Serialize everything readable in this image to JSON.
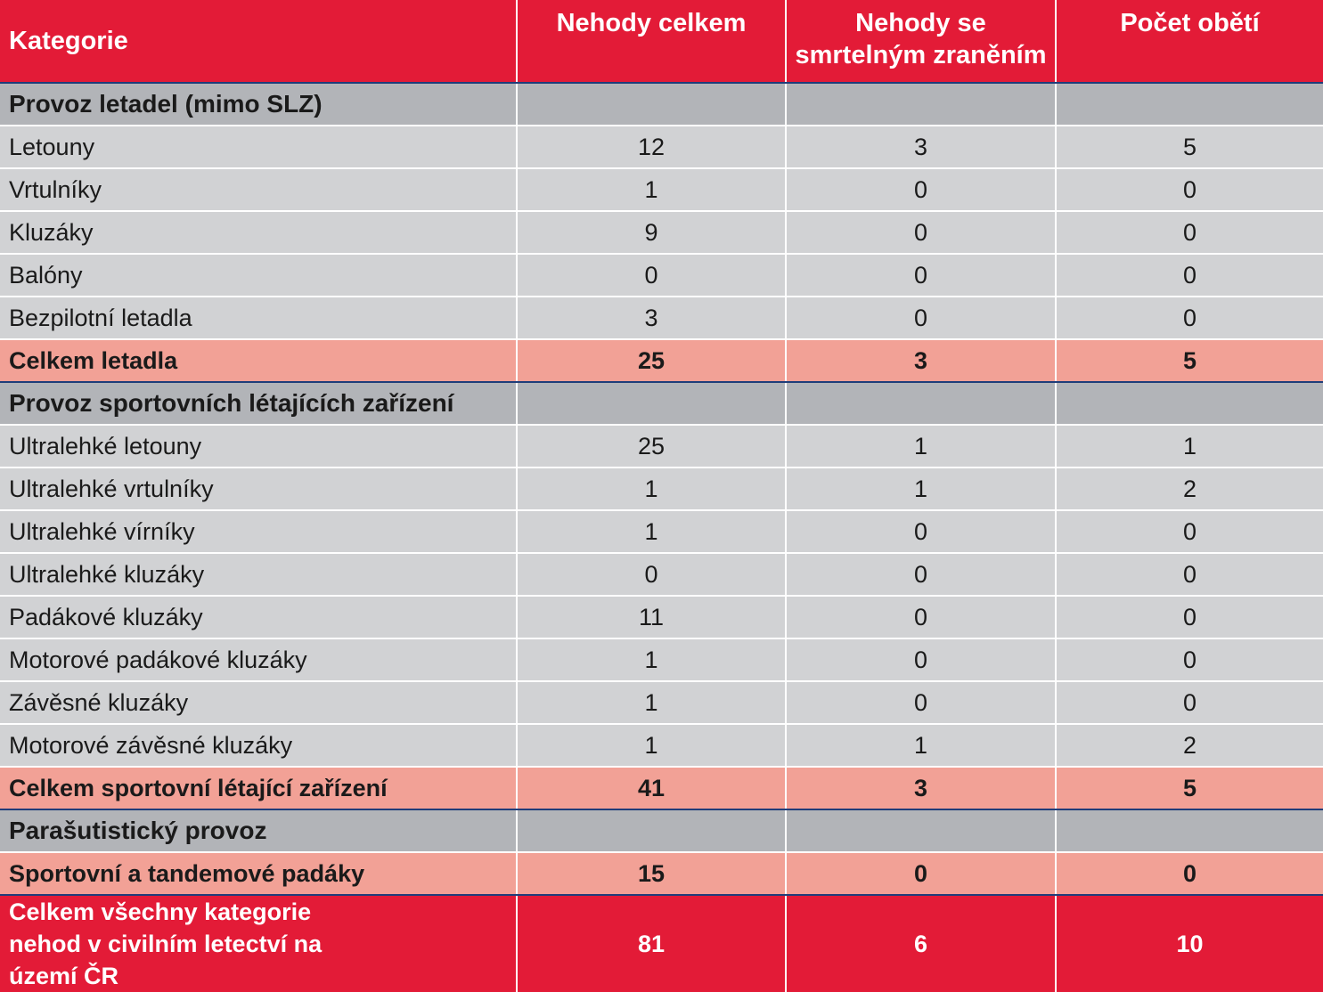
{
  "header": {
    "category": "Kategorie",
    "col_total": "Nehody celkem",
    "col_fatal": "Nehody se smrtelným zraněním",
    "col_victims": "Počet obětí"
  },
  "sections": [
    {
      "title": "Provoz letadel (mimo SLZ)",
      "rows": [
        {
          "label": "Letouny",
          "total": "12",
          "fatal": "3",
          "victims": "5"
        },
        {
          "label": "Vrtulníky",
          "total": "1",
          "fatal": "0",
          "victims": "0"
        },
        {
          "label": "Kluzáky",
          "total": "9",
          "fatal": "0",
          "victims": "0"
        },
        {
          "label": "Balóny",
          "total": "0",
          "fatal": "0",
          "victims": "0"
        },
        {
          "label": "Bezpilotní letadla",
          "total": "3",
          "fatal": "0",
          "victims": "0"
        }
      ],
      "subtotal": {
        "label": "Celkem letadla",
        "total": "25",
        "fatal": "3",
        "victims": "5"
      }
    },
    {
      "title": "Provoz sportovních létajících zařízení",
      "rows": [
        {
          "label": "Ultralehké letouny",
          "total": "25",
          "fatal": "1",
          "victims": "1"
        },
        {
          "label": "Ultralehké vrtulníky",
          "total": "1",
          "fatal": "1",
          "victims": "2"
        },
        {
          "label": "Ultralehké vírníky",
          "total": "1",
          "fatal": "0",
          "victims": "0"
        },
        {
          "label": "Ultralehké kluzáky",
          "total": "0",
          "fatal": "0",
          "victims": "0"
        },
        {
          "label": "Padákové kluzáky",
          "total": "11",
          "fatal": "0",
          "victims": "0"
        },
        {
          "label": "Motorové padákové kluzáky",
          "total": "1",
          "fatal": "0",
          "victims": "0"
        },
        {
          "label": "Závěsné kluzáky",
          "total": "1",
          "fatal": "0",
          "victims": "0"
        },
        {
          "label": "Motorové závěsné kluzáky",
          "total": "1",
          "fatal": "1",
          "victims": "2"
        }
      ],
      "subtotal": {
        "label": "Celkem sportovní létající zařízení",
        "total": "41",
        "fatal": "3",
        "victims": "5"
      }
    },
    {
      "title": "Parašutistický provoz",
      "rows": [],
      "subtotal": {
        "label": "Sportovní a tandemové padáky",
        "total": "15",
        "fatal": "0",
        "victims": "0"
      }
    }
  ],
  "grand_total": {
    "label": "Celkem všechny kategorie nehod v civilním letectví na území ČR",
    "total": "81",
    "fatal": "6",
    "victims": "10"
  },
  "colors": {
    "header_red": "#e31b37",
    "section_gray": "#b2b4b8",
    "row_gray": "#d1d2d4",
    "subtotal_salmon": "#f2a196",
    "rule_blue": "#1f3d7a"
  }
}
